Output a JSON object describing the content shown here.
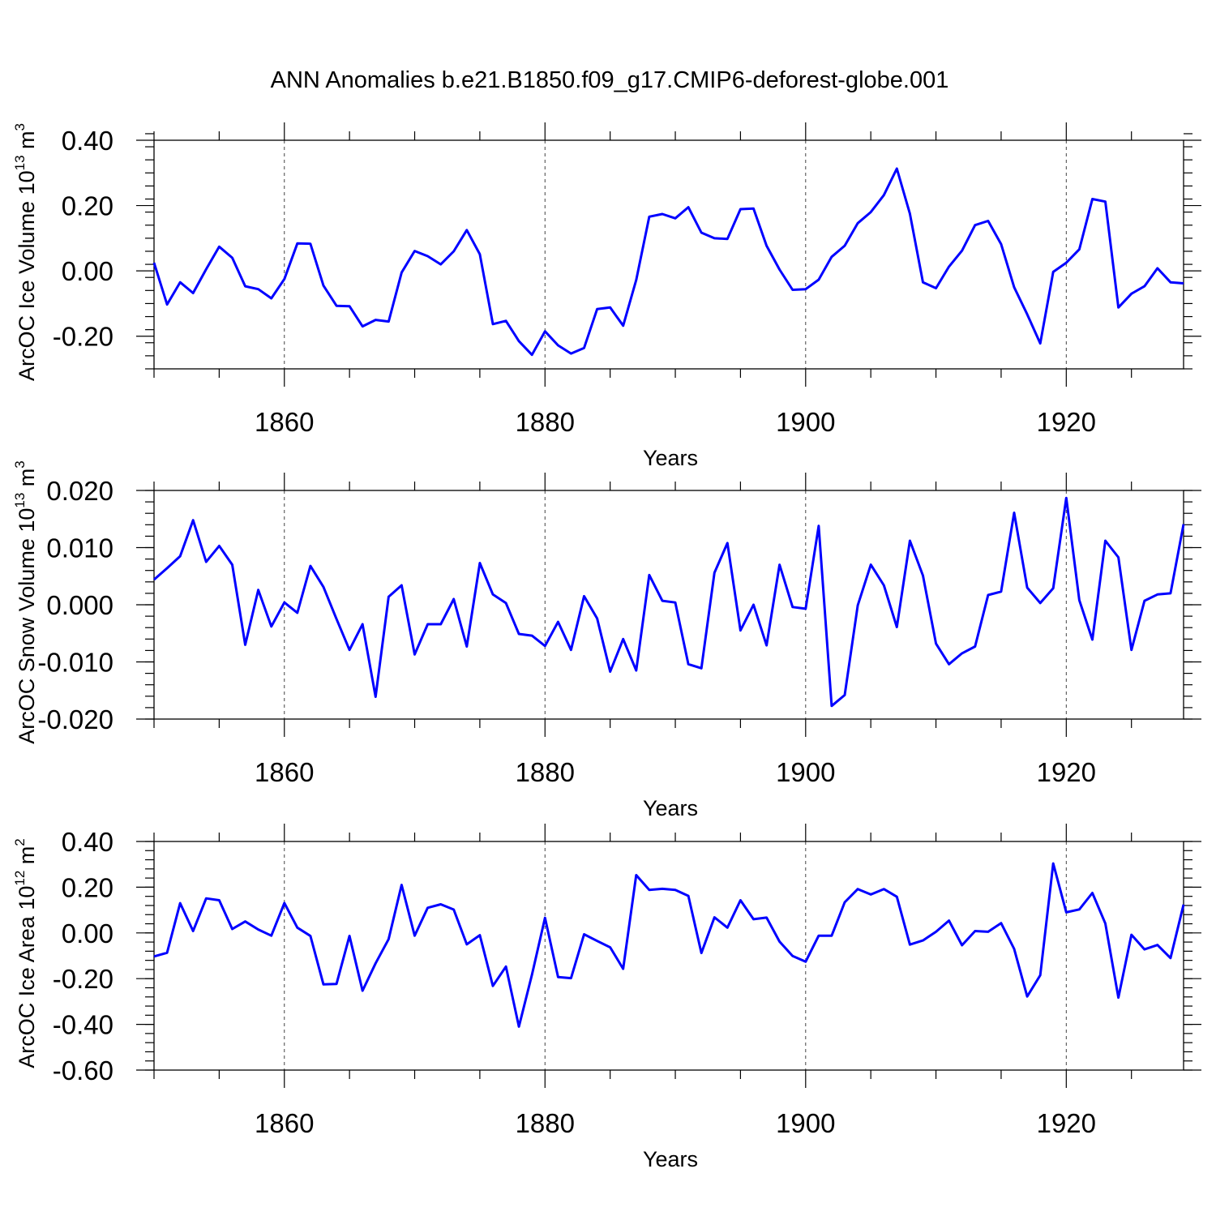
{
  "title": "ANN Anomalies b.e21.B1850.f09_g17.CMIP6-deforest-globe.001",
  "colors": {
    "line": "#0000ff",
    "axes": "#000000",
    "grid": "#444444"
  },
  "chart_data": [
    {
      "type": "line",
      "series_name": "ArcOC Ice Volume",
      "ylabel": "ArcOC Ice Volume 10",
      "ylabel_exp": "13",
      "ylabel_unit": " m",
      "ylabel_unit_exp": "3",
      "xlabel": "Years",
      "xlim": [
        1850,
        1929
      ],
      "ylim": [
        -0.3,
        0.4
      ],
      "xticks": [
        1860,
        1880,
        1900,
        1920
      ],
      "xtick_labels": [
        "1860",
        "1880",
        "1900",
        "1920"
      ],
      "yticks": [
        0.4,
        0.2,
        0.0,
        -0.2
      ],
      "ytick_labels": [
        "0.40",
        "0.20",
        "0.00",
        "-0.20"
      ],
      "yminor_step": 0.04,
      "grid_x": [
        1860,
        1880,
        1900,
        1920
      ],
      "x_start": 1850,
      "values": [
        0.025,
        -0.103,
        -0.035,
        -0.068,
        0.005,
        0.074,
        0.04,
        -0.047,
        -0.056,
        -0.084,
        -0.025,
        0.084,
        0.083,
        -0.045,
        -0.107,
        -0.108,
        -0.17,
        -0.15,
        -0.155,
        -0.005,
        0.061,
        0.045,
        0.02,
        0.06,
        0.125,
        0.051,
        -0.163,
        -0.153,
        -0.215,
        -0.257,
        -0.185,
        -0.228,
        -0.253,
        -0.236,
        -0.117,
        -0.112,
        -0.168,
        -0.028,
        0.166,
        0.174,
        0.161,
        0.195,
        0.117,
        0.1,
        0.098,
        0.189,
        0.191,
        0.077,
        0.004,
        -0.058,
        -0.056,
        -0.027,
        0.043,
        0.077,
        0.146,
        0.18,
        0.232,
        0.313,
        0.175,
        -0.035,
        -0.053,
        0.013,
        0.062,
        0.14,
        0.153,
        0.082,
        -0.05,
        -0.133,
        -0.222,
        -0.003,
        0.025,
        0.066,
        0.22,
        0.212,
        -0.112,
        -0.07,
        -0.047,
        0.008,
        -0.035,
        -0.038
      ]
    },
    {
      "type": "line",
      "series_name": "ArcOC Snow Volume",
      "ylabel": "ArcOC Snow Volume 10",
      "ylabel_exp": "13",
      "ylabel_unit": " m",
      "ylabel_unit_exp": "3",
      "xlabel": "Years",
      "xlim": [
        1850,
        1929
      ],
      "ylim": [
        -0.02,
        0.02
      ],
      "xticks": [
        1860,
        1880,
        1900,
        1920
      ],
      "xtick_labels": [
        "1860",
        "1880",
        "1900",
        "1920"
      ],
      "yticks": [
        0.02,
        0.01,
        0.0,
        -0.01,
        -0.02
      ],
      "ytick_labels": [
        "0.020",
        "0.010",
        "0.000",
        "-0.010",
        "-0.020"
      ],
      "yminor_step": 0.002,
      "grid_x": [
        1860,
        1880,
        1900,
        1920
      ],
      "x_start": 1850,
      "values": [
        0.0044,
        0.0064,
        0.0085,
        0.0148,
        0.0075,
        0.0103,
        0.007,
        -0.007,
        0.0026,
        -0.0038,
        0.0004,
        -0.0014,
        0.0068,
        0.0031,
        -0.0025,
        -0.0079,
        -0.0034,
        -0.0161,
        0.0014,
        0.0034,
        -0.0087,
        -0.0034,
        -0.0034,
        0.001,
        -0.0073,
        0.0073,
        0.0018,
        0.0003,
        -0.0051,
        -0.0054,
        -0.0072,
        -0.003,
        -0.0079,
        0.0015,
        -0.0024,
        -0.0117,
        -0.006,
        -0.0115,
        0.0052,
        0.0007,
        0.0004,
        -0.0104,
        -0.0111,
        0.0056,
        0.0108,
        -0.0045,
        0.0,
        -0.0071,
        0.007,
        -0.0004,
        -0.0007,
        0.0138,
        -0.0177,
        -0.0158,
        -0.0001,
        0.007,
        0.0034,
        -0.0039,
        0.0112,
        0.0051,
        -0.0068,
        -0.0104,
        -0.0085,
        -0.0073,
        0.0017,
        0.0023,
        0.0161,
        0.003,
        0.0003,
        0.0029,
        0.0187,
        0.0008,
        -0.0061,
        0.0112,
        0.0083,
        -0.0079,
        0.0007,
        0.0018,
        0.002,
        0.0141
      ]
    },
    {
      "type": "line",
      "series_name": "ArcOC Ice Area",
      "ylabel": "ArcOC Ice Area 10",
      "ylabel_exp": "12",
      "ylabel_unit": " m",
      "ylabel_unit_exp": "2",
      "xlabel": "Years",
      "xlim": [
        1850,
        1929
      ],
      "ylim": [
        -0.6,
        0.4
      ],
      "xticks": [
        1860,
        1880,
        1900,
        1920
      ],
      "xtick_labels": [
        "1860",
        "1880",
        "1900",
        "1920"
      ],
      "yticks": [
        0.4,
        0.2,
        0.0,
        -0.2,
        -0.4,
        -0.6
      ],
      "ytick_labels": [
        "0.40",
        "0.20",
        "0.00",
        "-0.20",
        "-0.40",
        "-0.60"
      ],
      "yminor_step": 0.04,
      "grid_x": [
        1860,
        1880,
        1900,
        1920
      ],
      "x_start": 1850,
      "values": [
        -0.103,
        -0.087,
        0.13,
        0.008,
        0.151,
        0.143,
        0.017,
        0.05,
        0.015,
        -0.012,
        0.131,
        0.023,
        -0.013,
        -0.225,
        -0.223,
        -0.013,
        -0.253,
        -0.133,
        -0.027,
        0.21,
        -0.012,
        0.11,
        0.125,
        0.102,
        -0.05,
        -0.01,
        -0.232,
        -0.147,
        -0.41,
        -0.183,
        0.066,
        -0.193,
        -0.198,
        -0.006,
        -0.035,
        -0.063,
        -0.157,
        0.253,
        0.188,
        0.193,
        0.188,
        0.162,
        -0.088,
        0.068,
        0.023,
        0.143,
        0.06,
        0.067,
        -0.038,
        -0.101,
        -0.126,
        -0.012,
        -0.012,
        0.134,
        0.192,
        0.168,
        0.192,
        0.158,
        -0.051,
        -0.033,
        0.005,
        0.054,
        -0.054,
        0.008,
        0.005,
        0.043,
        -0.07,
        -0.278,
        -0.185,
        0.304,
        0.09,
        0.103,
        0.175,
        0.041,
        -0.283,
        -0.008,
        -0.072,
        -0.053,
        -0.11,
        0.124
      ]
    }
  ]
}
